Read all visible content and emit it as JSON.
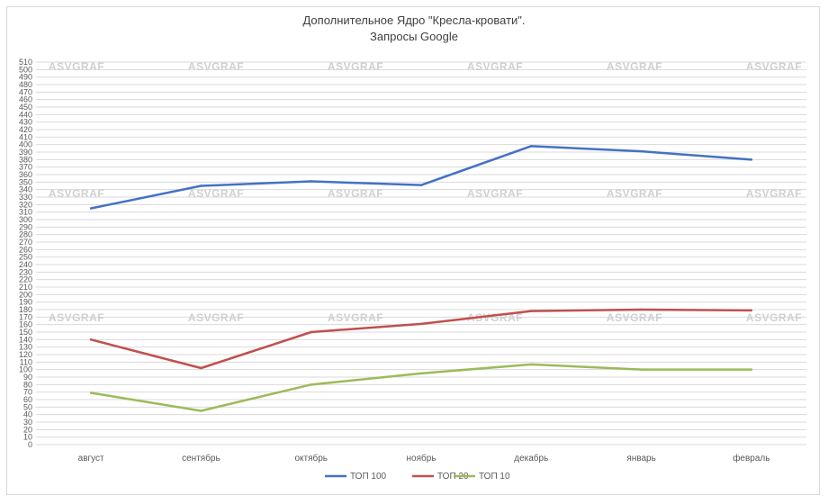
{
  "chart_data": {
    "type": "line",
    "title_line1": "Дополнительное Ядро \"Кресла-кровати\".",
    "title_line2": "Запросы Google",
    "categories": [
      "август",
      "сентябрь",
      "октябрь",
      "ноябрь",
      "декабрь",
      "январь",
      "февраль"
    ],
    "ylim": [
      0,
      510
    ],
    "y_step": 10,
    "grid": true,
    "legend_position": "bottom",
    "watermark": "ASVGRAF",
    "series": [
      {
        "name": "ТОП 100",
        "color": "#4472c4",
        "values": [
          315,
          345,
          351,
          346,
          398,
          391,
          380
        ]
      },
      {
        "name": "ТОП 20",
        "color": "#c0504d",
        "values": [
          140,
          102,
          150,
          161,
          178,
          180,
          179
        ]
      },
      {
        "name": "ТОП 10",
        "color": "#9bbb59",
        "values": [
          69,
          45,
          80,
          95,
          107,
          100,
          100
        ]
      }
    ]
  }
}
